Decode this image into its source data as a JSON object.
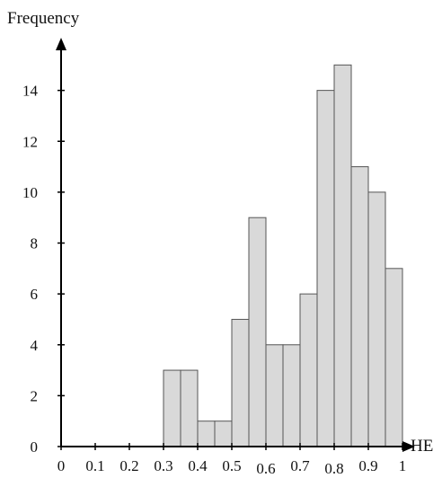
{
  "chart_data": {
    "type": "bar",
    "title": "",
    "xlabel": "HE",
    "ylabel": "Frequency",
    "bin_width": 0.05,
    "bins": [
      {
        "start": 0.3,
        "end": 0.35,
        "count": 3
      },
      {
        "start": 0.35,
        "end": 0.4,
        "count": 3
      },
      {
        "start": 0.4,
        "end": 0.45,
        "count": 1
      },
      {
        "start": 0.45,
        "end": 0.5,
        "count": 1
      },
      {
        "start": 0.5,
        "end": 0.55,
        "count": 5
      },
      {
        "start": 0.55,
        "end": 0.6,
        "count": 9
      },
      {
        "start": 0.6,
        "end": 0.65,
        "count": 4
      },
      {
        "start": 0.65,
        "end": 0.7,
        "count": 4
      },
      {
        "start": 0.7,
        "end": 0.75,
        "count": 6
      },
      {
        "start": 0.75,
        "end": 0.8,
        "count": 14
      },
      {
        "start": 0.8,
        "end": 0.85,
        "count": 15
      },
      {
        "start": 0.85,
        "end": 0.9,
        "count": 11
      },
      {
        "start": 0.9,
        "end": 0.95,
        "count": 10
      },
      {
        "start": 0.95,
        "end": 1.0,
        "count": 7
      }
    ],
    "xlim": [
      0,
      1
    ],
    "ylim": [
      0,
      16
    ],
    "x_ticks": [
      "0",
      "0.1",
      "0.2",
      "0.3",
      "0.4",
      "0.5",
      "0.6",
      "0.7",
      "0.8",
      "0.9",
      "1"
    ],
    "y_ticks": [
      "0",
      "2",
      "4",
      "6",
      "8",
      "10",
      "12",
      "14"
    ],
    "grid": false,
    "colors": {
      "bar_fill": "#d9d9d9",
      "bar_stroke": "#555555",
      "axis": "#000000"
    }
  }
}
